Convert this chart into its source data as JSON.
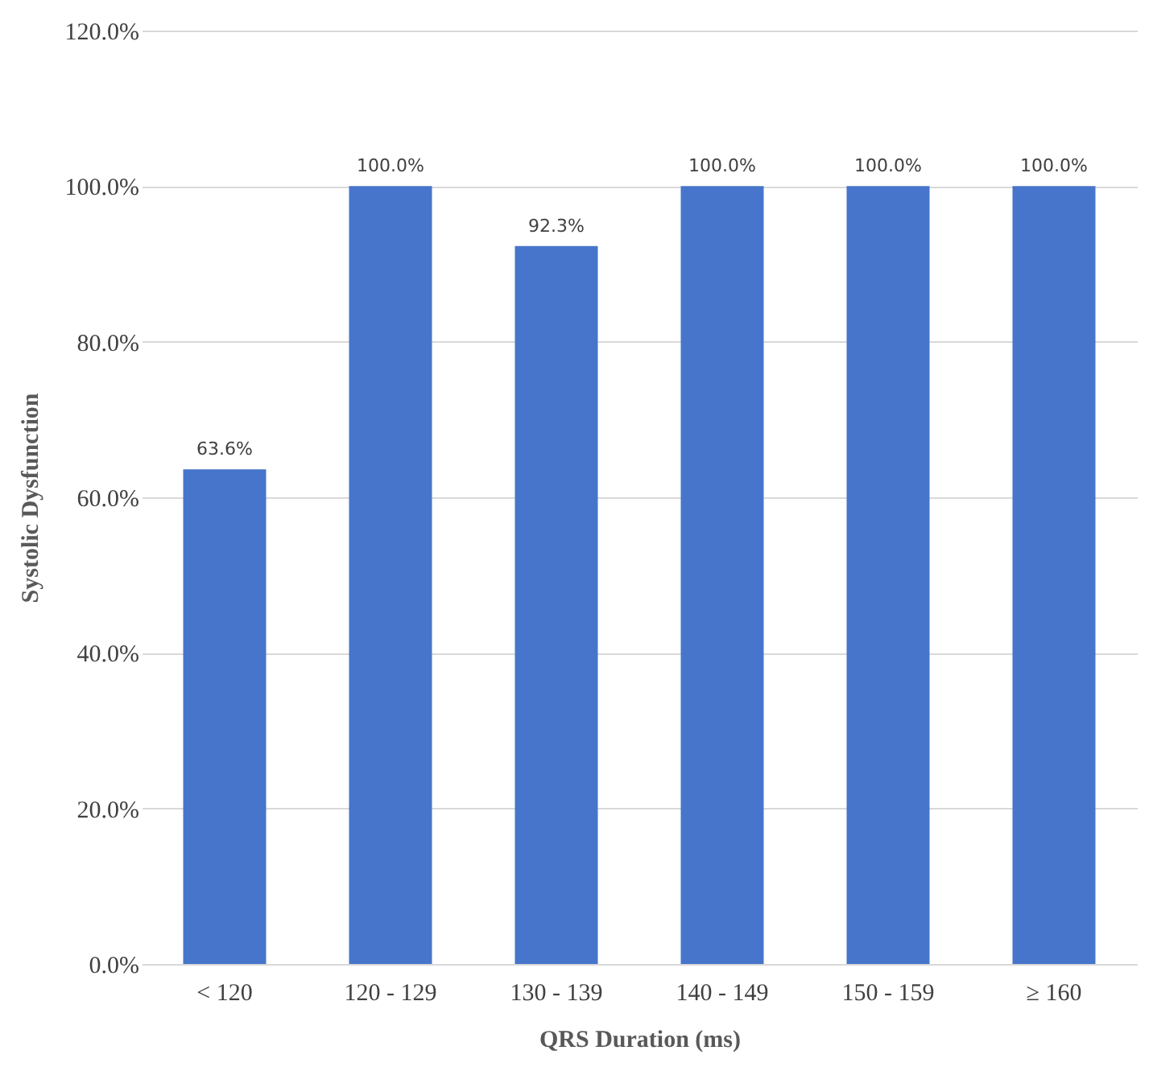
{
  "chart_data": {
    "type": "bar",
    "xlabel": "QRS Duration (ms)",
    "ylabel": "Systolic Dysfunction",
    "categories": [
      "< 120",
      "120 - 129",
      "130 - 139",
      "140 - 149",
      "150 - 159",
      "≥ 160"
    ],
    "values": [
      63.6,
      100,
      92.3,
      100,
      100,
      100
    ],
    "color": "#4775cb",
    "value_labels": [
      "63.6%",
      "100.0%",
      "92.3%",
      "100.0%",
      "100.0%",
      "100.0%"
    ],
    "ylim": [
      0,
      120
    ],
    "yticks": [
      {
        "value": 0,
        "label": "0.0%"
      },
      {
        "value": 20,
        "label": "20.0%"
      },
      {
        "value": 40,
        "label": "40.0%"
      },
      {
        "value": 60,
        "label": "60.0%"
      },
      {
        "value": 80,
        "label": "80.0%"
      },
      {
        "value": 100,
        "label": "100.0%"
      },
      {
        "value": 120,
        "label": "120.0%"
      }
    ],
    "grid": "y"
  }
}
